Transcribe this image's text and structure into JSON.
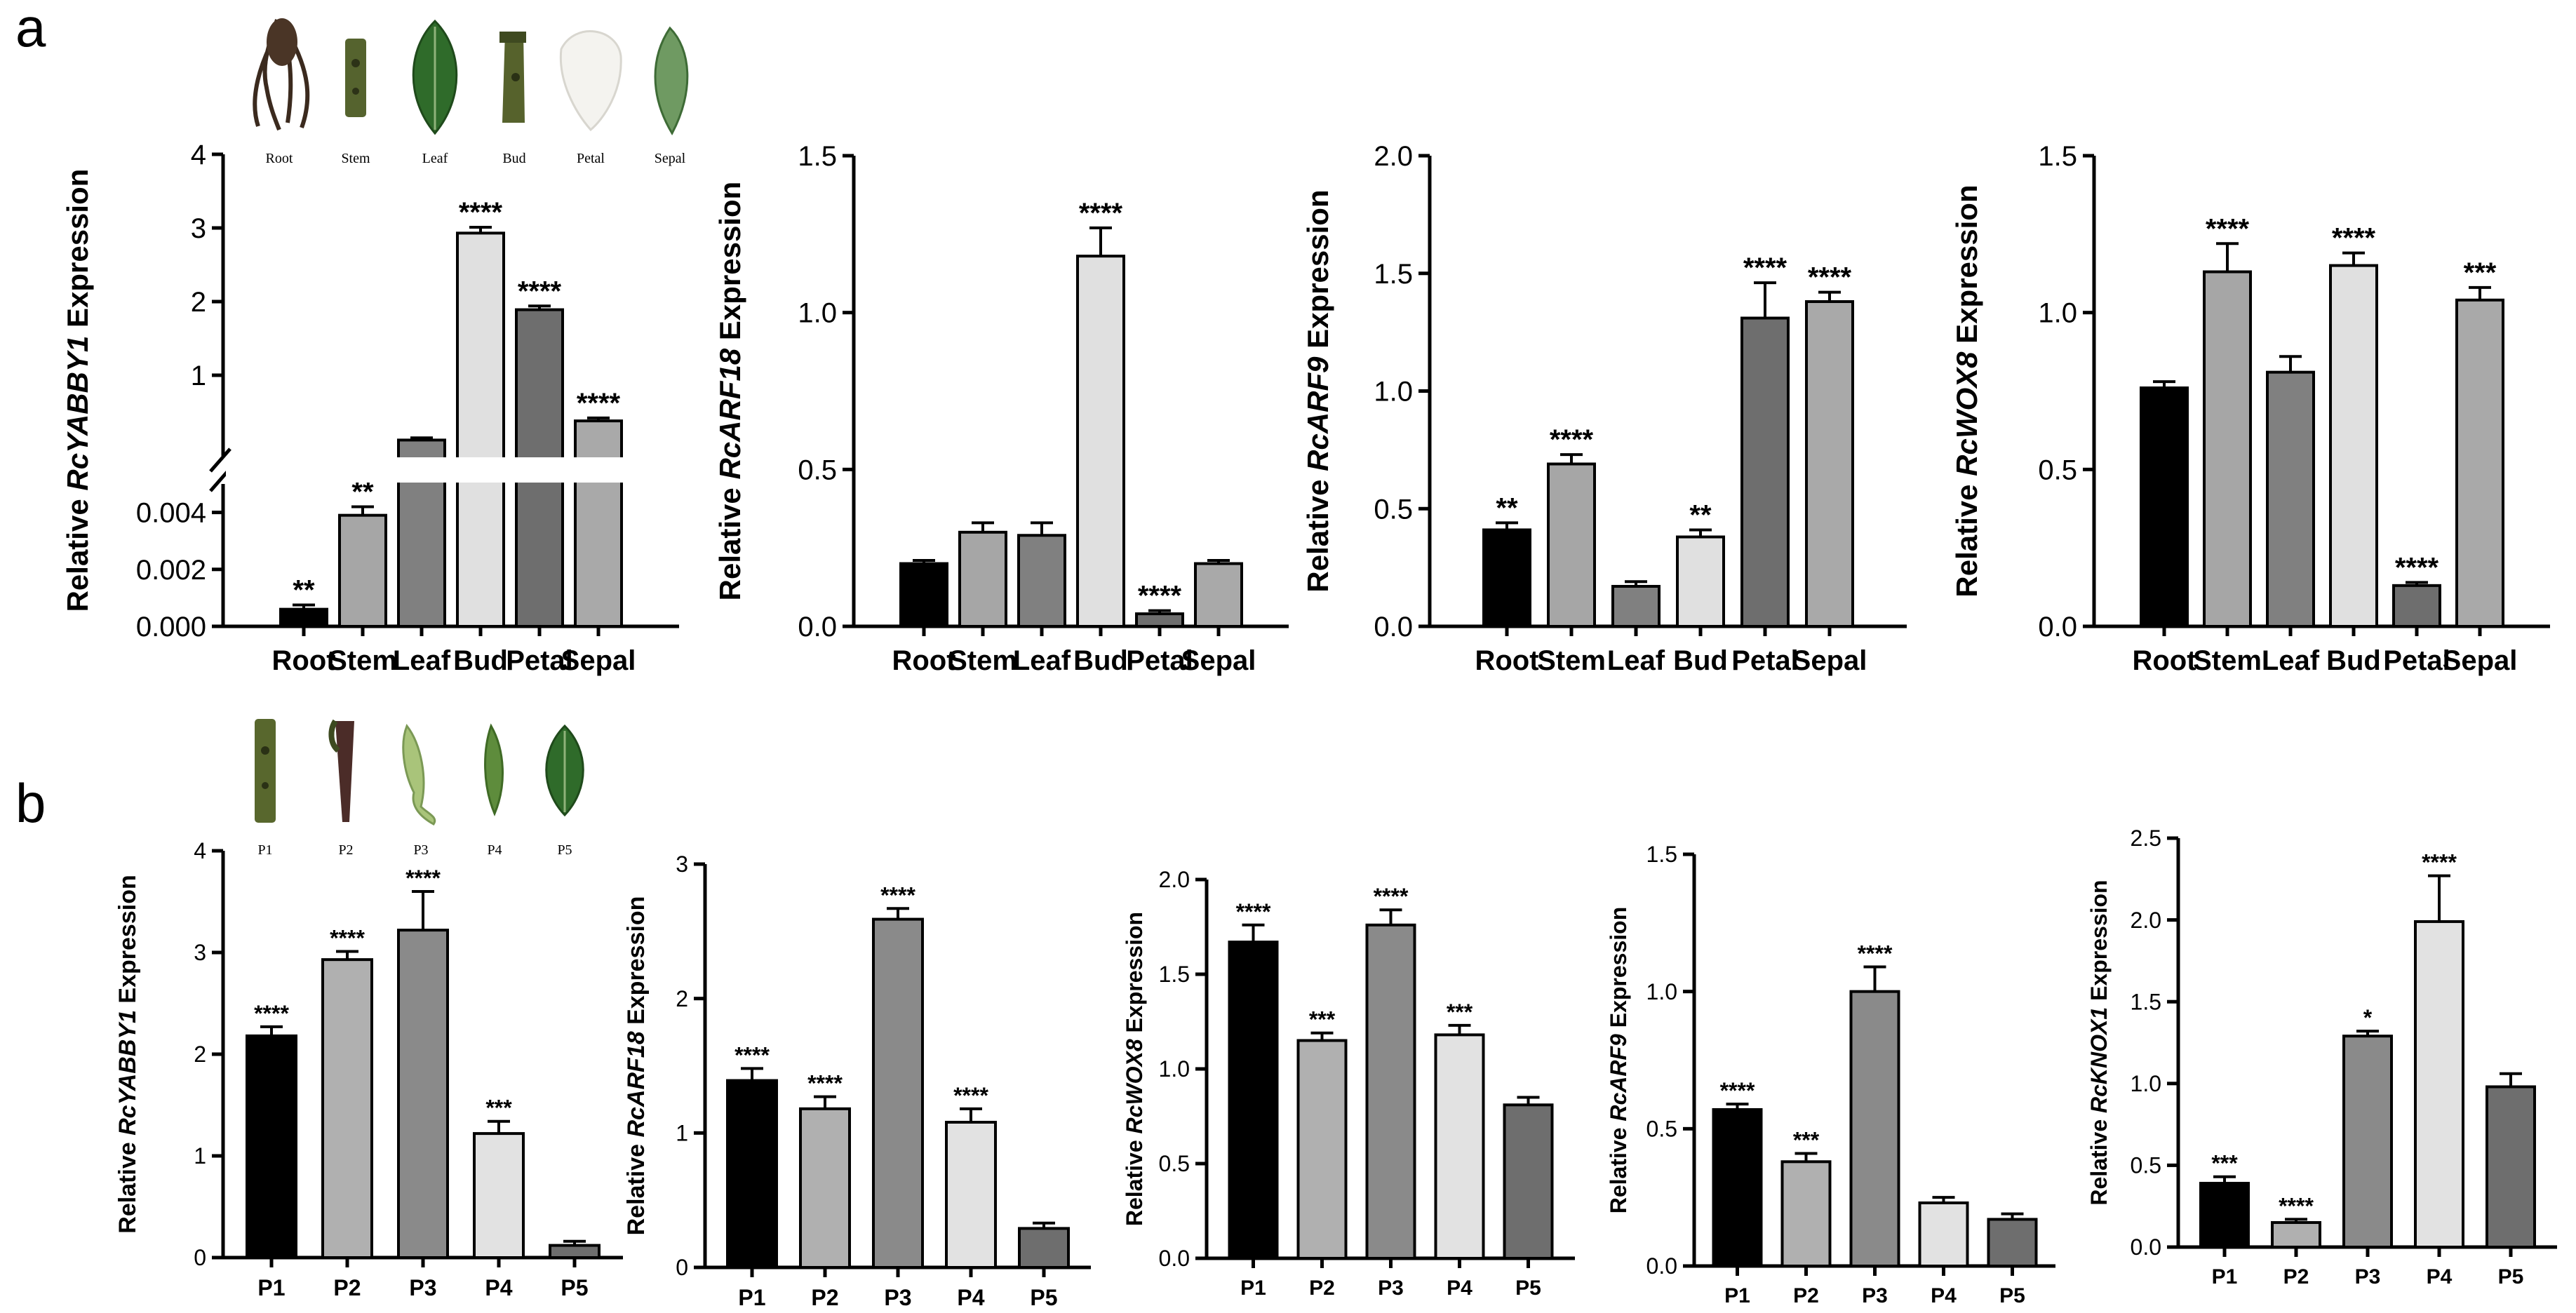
{
  "panels": [
    {
      "letter": "a"
    },
    {
      "letter": "b"
    }
  ],
  "tissue_images_a": [
    "Root",
    "Stem",
    "Leaf",
    "Bud",
    "Petal",
    "Sepal"
  ],
  "tissue_images_b": [
    "P1",
    "P2",
    "P3",
    "P4",
    "P5"
  ],
  "colors": {
    "six": [
      "#000000",
      "#a6a6a6",
      "#808080",
      "#e0e0e0",
      "#6e6e6e",
      "#a9a9a9"
    ],
    "five": [
      "#000000",
      "#b0b0b0",
      "#8a8a8a",
      "#e2e2e2",
      "#6e6e6e"
    ]
  },
  "chart_data": [
    {
      "id": "a1",
      "type": "bar",
      "broken_axis": true,
      "categories": [
        "Root",
        "Stem",
        "Leaf",
        "Bud",
        "Petal",
        "Sepal"
      ],
      "values": [
        0.0006,
        0.0039,
        0.12,
        2.93,
        1.89,
        0.38
      ],
      "errors": [
        0.00015,
        0.0003,
        0.03,
        0.08,
        0.05,
        0.04
      ],
      "sig": [
        "**",
        "**",
        "",
        "****",
        "****",
        "****"
      ],
      "ylabel_prefix": "Relative ",
      "ylabel_gene": "RcYABBY1",
      "ylabel_suffix": " Expression",
      "upper_range": [
        0,
        4
      ],
      "upper_ticks": [
        "1",
        "2",
        "3",
        "4"
      ],
      "lower_range": [
        0,
        0.005
      ],
      "lower_ticks": [
        "0.000",
        "0.002",
        "0.004"
      ]
    },
    {
      "id": "a2",
      "type": "bar",
      "categories": [
        "Root",
        "Stem",
        "Leaf",
        "Bud",
        "Petal",
        "Sepal"
      ],
      "values": [
        0.2,
        0.3,
        0.29,
        1.18,
        0.04,
        0.2
      ],
      "errors": [
        0.01,
        0.03,
        0.04,
        0.09,
        0.01,
        0.01
      ],
      "sig": [
        "",
        "",
        "",
        "****",
        "****",
        ""
      ],
      "ylabel_prefix": "Relative ",
      "ylabel_gene": "RcARF18",
      "ylabel_suffix": " Expression",
      "ylim": [
        0,
        1.5
      ],
      "ticks": [
        "0.0",
        "0.5",
        "1.0",
        "1.5"
      ]
    },
    {
      "id": "a3",
      "type": "bar",
      "categories": [
        "Root",
        "Stem",
        "Leaf",
        "Bud",
        "Petal",
        "Sepal"
      ],
      "values": [
        0.41,
        0.69,
        0.17,
        0.38,
        1.31,
        1.38
      ],
      "errors": [
        0.03,
        0.04,
        0.02,
        0.03,
        0.15,
        0.04
      ],
      "sig": [
        "**",
        "****",
        "",
        "**",
        "****",
        "****"
      ],
      "ylabel_prefix": "Relative ",
      "ylabel_gene": "RcARF9",
      "ylabel_suffix": " Expression",
      "ylim": [
        0,
        2.0
      ],
      "ticks": [
        "0.0",
        "0.5",
        "1.0",
        "1.5",
        "2.0"
      ]
    },
    {
      "id": "a4",
      "type": "bar",
      "categories": [
        "Root",
        "Stem",
        "Leaf",
        "Bud",
        "Petal",
        "Sepal"
      ],
      "values": [
        0.76,
        1.13,
        0.81,
        1.15,
        0.13,
        1.04
      ],
      "errors": [
        0.02,
        0.09,
        0.05,
        0.04,
        0.01,
        0.04
      ],
      "sig": [
        "",
        "****",
        "",
        "****",
        "****",
        "***"
      ],
      "ylabel_prefix": "Relative ",
      "ylabel_gene": "RcWOX8",
      "ylabel_suffix": " Expression",
      "ylim": [
        0,
        1.5
      ],
      "ticks": [
        "0.0",
        "0.5",
        "1.0",
        "1.5"
      ]
    },
    {
      "id": "b1",
      "type": "bar",
      "categories": [
        "P1",
        "P2",
        "P3",
        "P4",
        "P5"
      ],
      "values": [
        2.18,
        2.93,
        3.22,
        1.22,
        0.12
      ],
      "errors": [
        0.09,
        0.08,
        0.38,
        0.12,
        0.04
      ],
      "sig": [
        "****",
        "****",
        "****",
        "***",
        ""
      ],
      "ylabel_prefix": "Relative ",
      "ylabel_gene": "RcYABBY1",
      "ylabel_suffix": " Expression",
      "ylim": [
        0,
        4
      ],
      "ticks": [
        "0",
        "1",
        "2",
        "3",
        "4"
      ]
    },
    {
      "id": "b2",
      "type": "bar",
      "categories": [
        "P1",
        "P2",
        "P3",
        "P4",
        "P5"
      ],
      "values": [
        1.39,
        1.18,
        2.59,
        1.08,
        0.29
      ],
      "errors": [
        0.09,
        0.09,
        0.08,
        0.1,
        0.04
      ],
      "sig": [
        "****",
        "****",
        "****",
        "****",
        ""
      ],
      "ylabel_prefix": "Relative ",
      "ylabel_gene": "RcARF18",
      "ylabel_suffix": " Expression",
      "ylim": [
        0,
        3
      ],
      "ticks": [
        "0",
        "1",
        "2",
        "3"
      ]
    },
    {
      "id": "b3",
      "type": "bar",
      "categories": [
        "P1",
        "P2",
        "P3",
        "P4",
        "P5"
      ],
      "values": [
        1.67,
        1.15,
        1.76,
        1.18,
        0.81
      ],
      "errors": [
        0.09,
        0.04,
        0.08,
        0.05,
        0.04
      ],
      "sig": [
        "****",
        "***",
        "****",
        "***",
        ""
      ],
      "ylabel_prefix": "Relative ",
      "ylabel_gene": "RcWOX8",
      "ylabel_suffix": " Expression",
      "ylim": [
        0,
        2.0
      ],
      "ticks": [
        "0.0",
        "0.5",
        "1.0",
        "1.5",
        "2.0"
      ]
    },
    {
      "id": "b4",
      "type": "bar",
      "categories": [
        "P1",
        "P2",
        "P3",
        "P4",
        "P5"
      ],
      "values": [
        0.57,
        0.38,
        1.0,
        0.23,
        0.17
      ],
      "errors": [
        0.02,
        0.03,
        0.09,
        0.02,
        0.02
      ],
      "sig": [
        "****",
        "***",
        "****",
        "",
        ""
      ],
      "ylabel_prefix": "Relative ",
      "ylabel_gene": "RcARF9",
      "ylabel_suffix": " Expression",
      "ylim": [
        0,
        1.5
      ],
      "ticks": [
        "0.0",
        "0.5",
        "1.0",
        "1.5"
      ]
    },
    {
      "id": "b5",
      "type": "bar",
      "categories": [
        "P1",
        "P2",
        "P3",
        "P4",
        "P5"
      ],
      "values": [
        0.39,
        0.15,
        1.29,
        1.99,
        0.98
      ],
      "errors": [
        0.04,
        0.02,
        0.03,
        0.28,
        0.08
      ],
      "sig": [
        "***",
        "****",
        "*",
        "****",
        ""
      ],
      "ylabel_prefix": "Relative ",
      "ylabel_gene": "RcKNOX1",
      "ylabel_suffix": " Expression",
      "ylim": [
        0,
        2.5
      ],
      "ticks": [
        "0.0",
        "0.5",
        "1.0",
        "1.5",
        "2.0",
        "2.5"
      ]
    }
  ]
}
